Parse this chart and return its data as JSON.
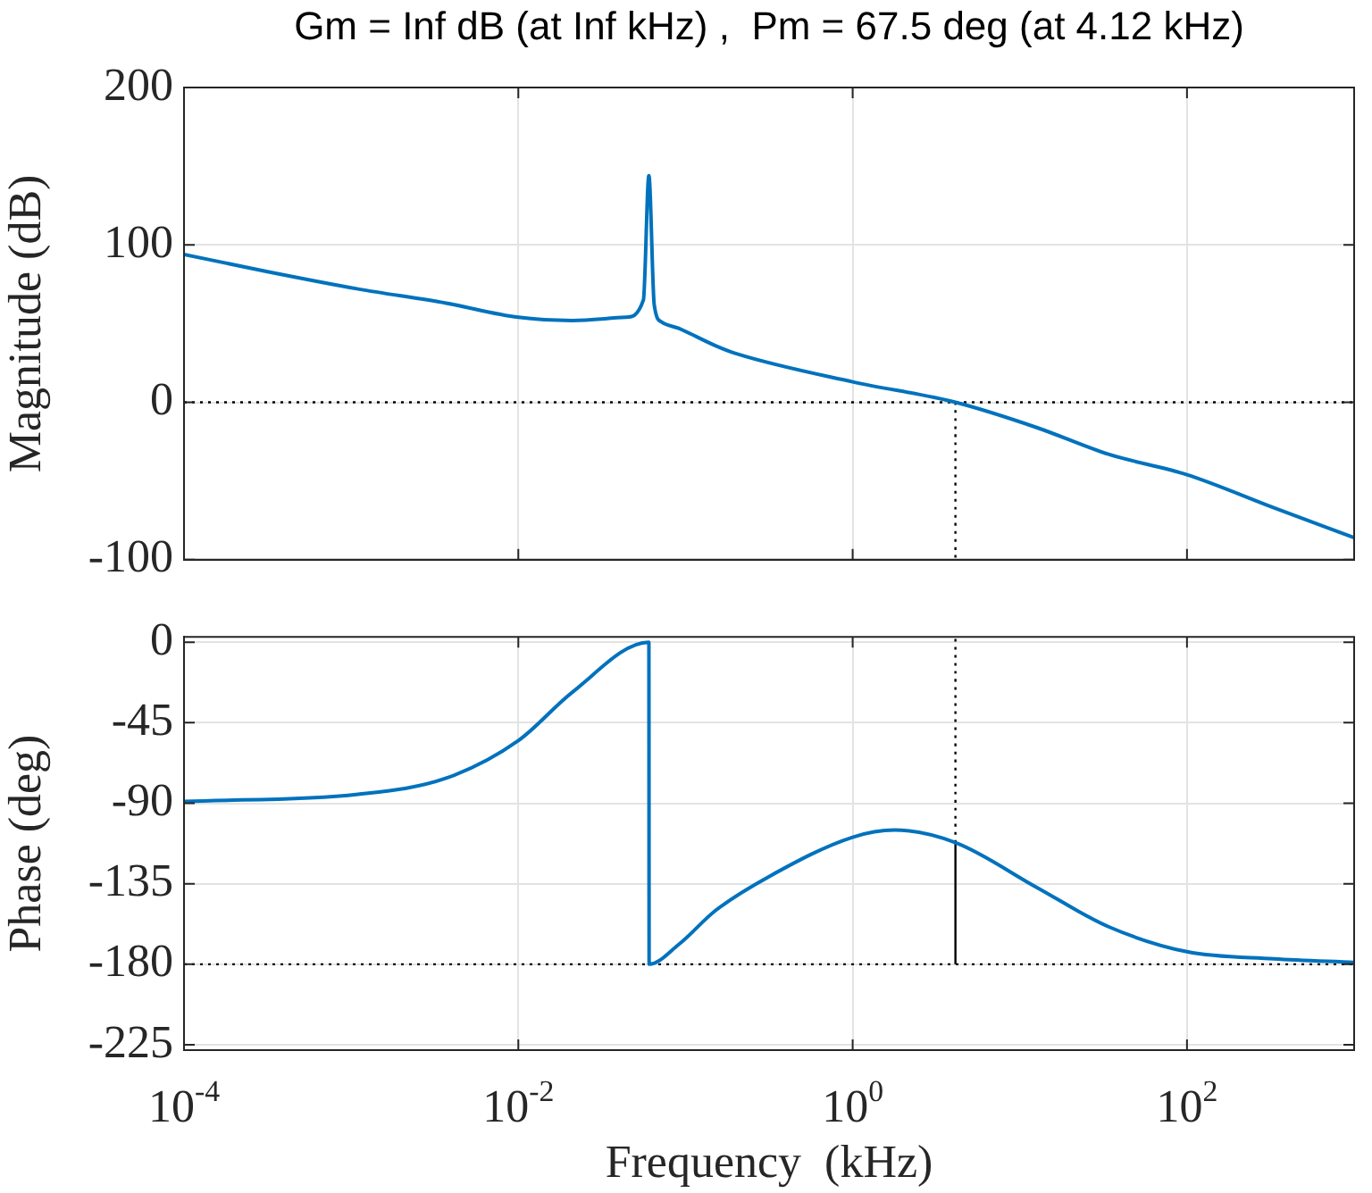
{
  "chart_data": [
    {
      "type": "line",
      "title": "Gm = Inf dB (at Inf kHz) ,  Pm = 67.5 deg (at 4.12 kHz)",
      "ylabel": "Magnitude (dB)",
      "log": "x",
      "xlim": [
        0.0001,
        1000
      ],
      "xticks": [
        {
          "value": 0.0001,
          "label": null
        },
        {
          "value": 0.01,
          "label": null
        },
        {
          "value": 1,
          "label": null
        },
        {
          "value": 100,
          "label": null
        }
      ],
      "ylim": [
        -100,
        200
      ],
      "yticks": [
        -100,
        0,
        100,
        200
      ],
      "grid": true,
      "legend": false,
      "marker": "none",
      "tick_labels": "y",
      "ref_lines": [
        {
          "axis": "y",
          "value": 0,
          "color": "#000000",
          "line_style": "dotted"
        }
      ],
      "series": [
        {
          "color": "#0072bd",
          "x": [
            0.0001,
            0.000316,
            0.0011,
            0.0037,
            0.01,
            0.021,
            0.044,
            0.056,
            0.0604,
            0.065,
            0.072,
            0.091,
            0.151,
            0.2,
            1,
            4.12,
            12.6,
            33.9,
            100,
            331,
            1000
          ],
          "values": [
            94,
            83,
            72,
            63,
            54,
            52,
            54,
            65,
            144,
            62,
            51,
            47,
            36,
            31,
            13,
            0,
            -16,
            -33,
            -46,
            -67,
            -86
          ]
        },
        {
          "color": "#000000",
          "line_style": "dotted",
          "x": [
            4.12,
            4.12
          ],
          "values": [
            0,
            -100
          ]
        }
      ]
    },
    {
      "type": "line",
      "ylabel": "Phase (deg)",
      "xlabel": "Frequency  (kHz)",
      "log": "x",
      "xlim": [
        0.0001,
        1000
      ],
      "xticks": [
        {
          "value": 0.0001,
          "label": "10$^{-4}$"
        },
        {
          "value": 0.01,
          "label": "10$^{-2}$"
        },
        {
          "value": 1,
          "label": "10$^{0}$"
        },
        {
          "value": 100,
          "label": "10$^{2}$"
        }
      ],
      "ylim": [
        -228,
        3
      ],
      "yticks": [
        -225,
        -180,
        -135,
        -90,
        -45,
        0
      ],
      "grid": true,
      "legend": false,
      "marker": "none",
      "ref_lines": [
        {
          "axis": "y",
          "value": -180,
          "color": "#000000",
          "line_style": "dotted"
        }
      ],
      "series": [
        {
          "color": "#0072bd",
          "x": [
            0.0001,
            0.0011,
            0.0037,
            0.01,
            0.021,
            0.0604,
            0.0606,
            0.091,
            0.151,
            0.316,
            1,
            1.78,
            4.12,
            12.6,
            33.9,
            100,
            331,
            1000
          ],
          "values": [
            -89,
            -85,
            -76,
            -55,
            -28,
            0,
            -180,
            -169,
            -150,
            -131,
            -109,
            -105,
            -112,
            -137,
            -159,
            -173,
            -177,
            -179
          ]
        },
        {
          "color": "#000000",
          "x": [
            4.12,
            4.12
          ],
          "values": [
            -180,
            -112
          ]
        },
        {
          "color": "#000000",
          "line_style": "dotted",
          "x": [
            4.12,
            4.12
          ],
          "values": [
            -112,
            3
          ]
        }
      ]
    }
  ]
}
